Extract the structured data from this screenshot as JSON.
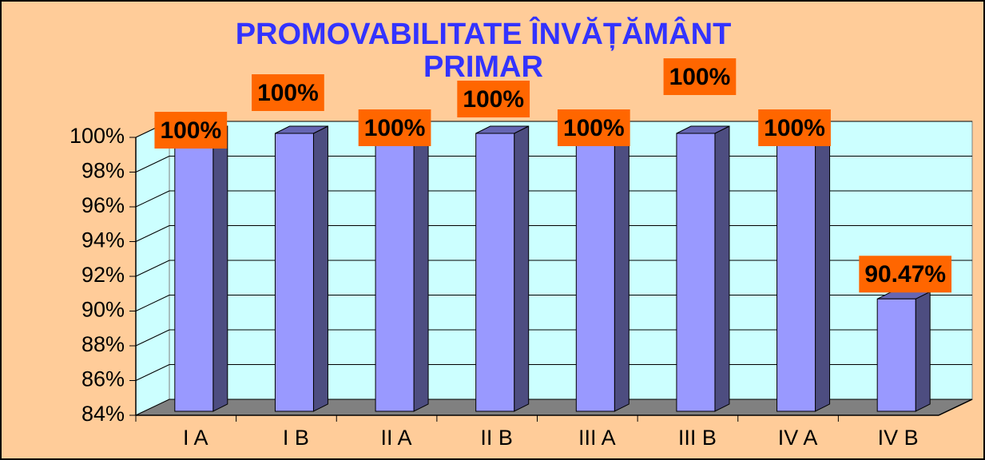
{
  "chart_data": {
    "type": "bar",
    "title": [
      "PROMOVABILITATE ÎNVĂȚĂMÂNT",
      "PRIMAR"
    ],
    "categories": [
      "I A",
      "I B",
      "II A",
      "II B",
      "III A",
      "III B",
      "IV A",
      "IV B"
    ],
    "values": [
      100,
      100,
      100,
      100,
      100,
      100,
      100,
      90.47
    ],
    "value_labels": [
      "100%",
      "100%",
      "100%",
      "100%",
      "100%",
      "100%",
      "100%",
      "90.47%"
    ],
    "color": "#9999ff",
    "ylim": [
      84,
      100
    ],
    "yticks": [
      {
        "value": 84,
        "label": "84%"
      },
      {
        "value": 86,
        "label": "86%"
      },
      {
        "value": 88,
        "label": "88%"
      },
      {
        "value": 90,
        "label": "90%"
      },
      {
        "value": 92,
        "label": "92%"
      },
      {
        "value": 94,
        "label": "94%"
      },
      {
        "value": 96,
        "label": "96%"
      },
      {
        "value": 98,
        "label": "98%"
      },
      {
        "value": 100,
        "label": "100%"
      }
    ],
    "grid": true
  }
}
